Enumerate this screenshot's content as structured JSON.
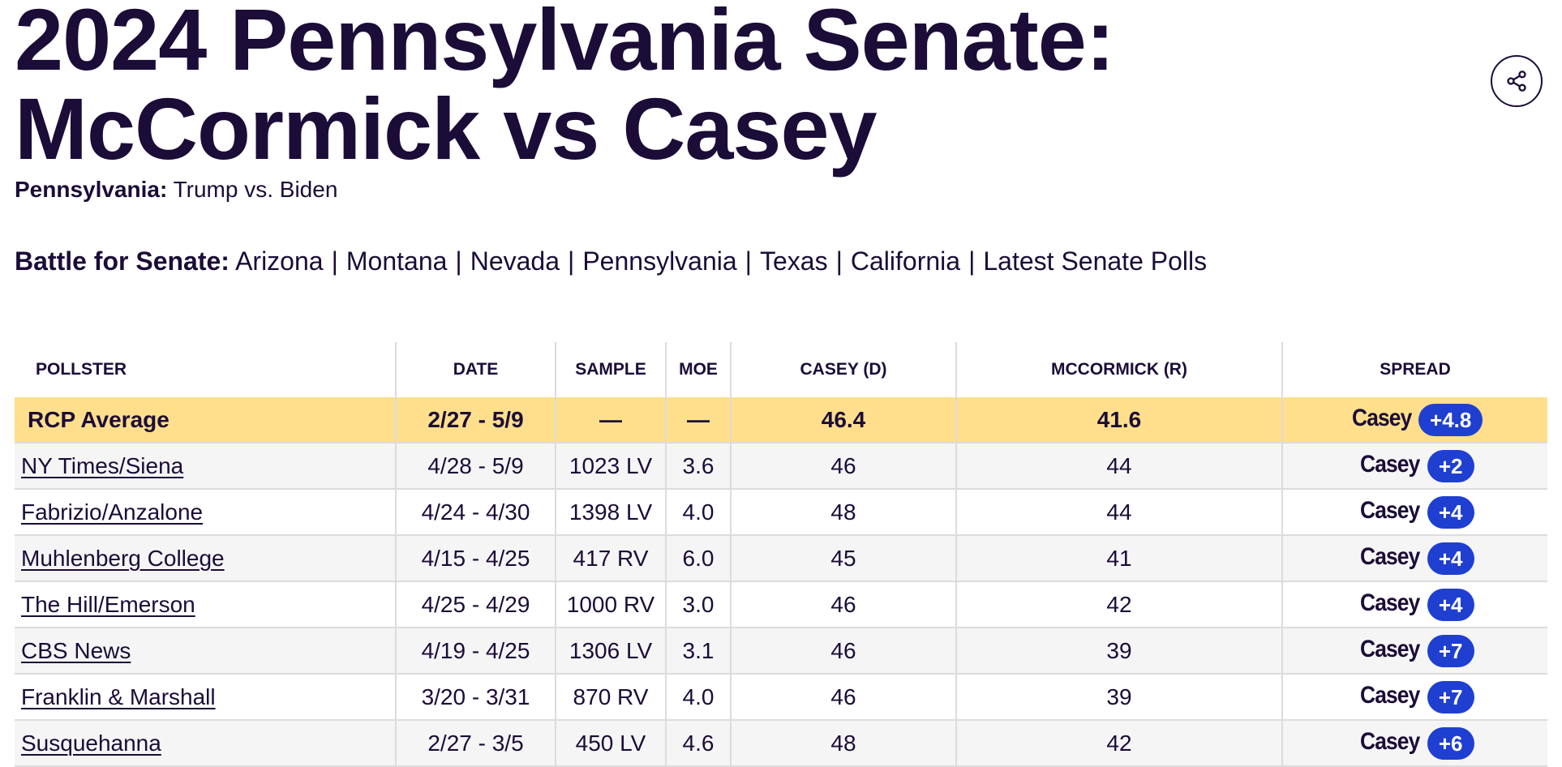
{
  "header": {
    "title_line1": "2024 Pennsylvania Senate:",
    "title_line2": "McCormick vs Casey",
    "share_icon": "share-icon"
  },
  "subline": {
    "label": "Pennsylvania:",
    "link": "Trump vs. Biden"
  },
  "battle": {
    "label": "Battle for Senate:",
    "links": [
      "Arizona",
      "Montana",
      "Nevada",
      "Pennsylvania",
      "Texas",
      "California",
      "Latest Senate Polls"
    ],
    "separator": "|"
  },
  "table": {
    "headers": [
      "POLLSTER",
      "DATE",
      "SAMPLE",
      "MOE",
      "CASEY (D)",
      "MCCORMICK (R)",
      "SPREAD"
    ],
    "average": {
      "pollster": "RCP Average",
      "date": "2/27 - 5/9",
      "sample": "—",
      "moe": "—",
      "casey": "46.4",
      "mccormick": "41.6",
      "spread_name": "Casey",
      "spread_value": "+4.8"
    },
    "rows": [
      {
        "pollster": "NY Times/Siena",
        "date": "4/28 - 5/9",
        "sample": "1023 LV",
        "moe": "3.6",
        "casey": "46",
        "mccormick": "44",
        "spread_name": "Casey",
        "spread_value": "+2"
      },
      {
        "pollster": "Fabrizio/Anzalone",
        "date": "4/24 - 4/30",
        "sample": "1398 LV",
        "moe": "4.0",
        "casey": "48",
        "mccormick": "44",
        "spread_name": "Casey",
        "spread_value": "+4"
      },
      {
        "pollster": "Muhlenberg College",
        "date": "4/15 - 4/25",
        "sample": "417 RV",
        "moe": "6.0",
        "casey": "45",
        "mccormick": "41",
        "spread_name": "Casey",
        "spread_value": "+4"
      },
      {
        "pollster": "The Hill/Emerson",
        "date": "4/25 - 4/29",
        "sample": "1000 RV",
        "moe": "3.0",
        "casey": "46",
        "mccormick": "42",
        "spread_name": "Casey",
        "spread_value": "+4"
      },
      {
        "pollster": "CBS News",
        "date": "4/19 - 4/25",
        "sample": "1306 LV",
        "moe": "3.1",
        "casey": "46",
        "mccormick": "39",
        "spread_name": "Casey",
        "spread_value": "+7"
      },
      {
        "pollster": "Franklin & Marshall",
        "date": "3/20 - 3/31",
        "sample": "870 RV",
        "moe": "4.0",
        "casey": "46",
        "mccormick": "39",
        "spread_name": "Casey",
        "spread_value": "+7"
      },
      {
        "pollster": "Susquehanna",
        "date": "2/27 - 3/5",
        "sample": "450 LV",
        "moe": "4.6",
        "casey": "48",
        "mccormick": "42",
        "spread_name": "Casey",
        "spread_value": "+6"
      }
    ]
  },
  "colors": {
    "text": "#1b0c38",
    "average_row": "#ffdf8c",
    "badge": "#1f3fd1",
    "alt_row": "#f5f5f5"
  }
}
